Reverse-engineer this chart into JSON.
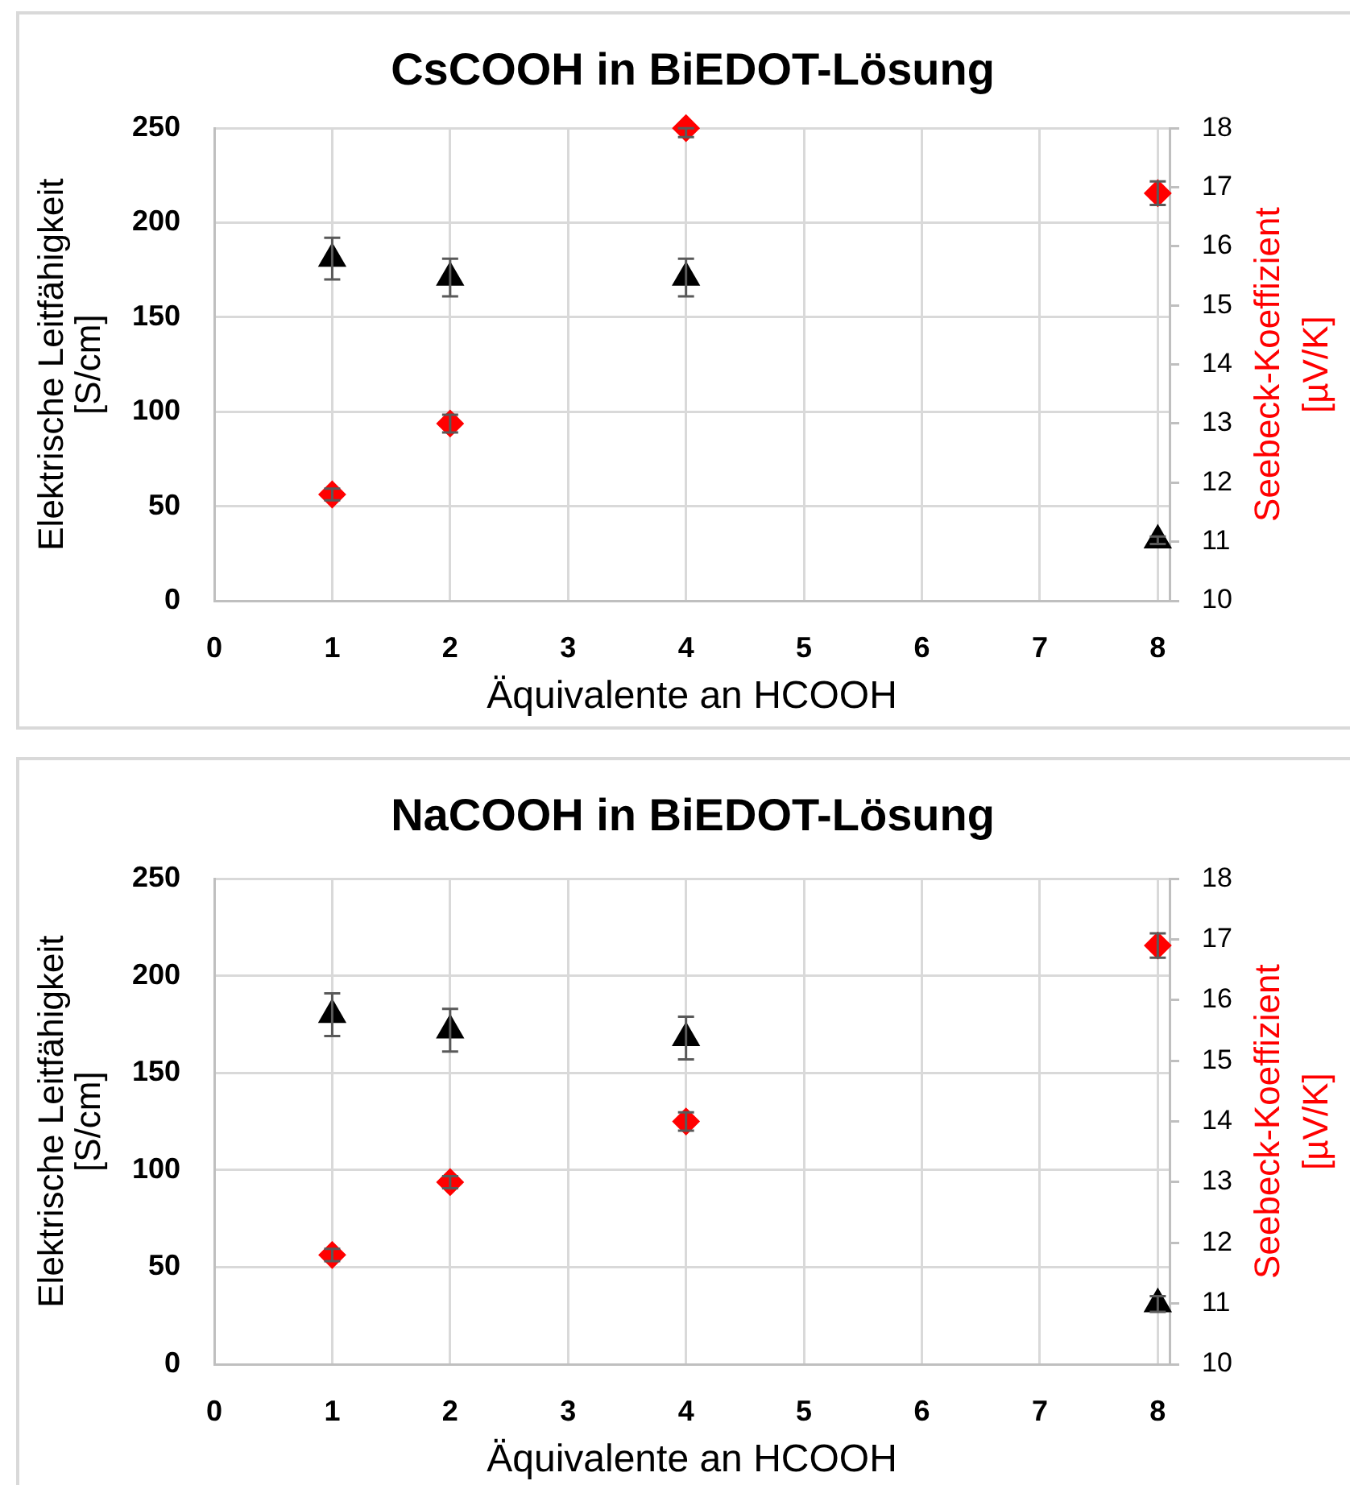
{
  "chart_data": [
    {
      "type": "scatter",
      "title": "CsCOOH in BiEDOT-Lösung",
      "xlabel": "Äquivalente an HCOOH",
      "ylabel": "Elektrische Leitfähigkeit\n[S/cm]",
      "y2label": "Seebeck-Koeffizient\n[µV/K]",
      "x": [
        1,
        2,
        4,
        8
      ],
      "xlim": [
        0,
        8.1
      ],
      "xticks": [
        0,
        1,
        2,
        3,
        4,
        5,
        6,
        7,
        8
      ],
      "ylim": [
        0,
        250
      ],
      "yticks": [
        0,
        50,
        100,
        150,
        200,
        250
      ],
      "y2lim": [
        10,
        18
      ],
      "y2ticks": [
        10,
        11,
        12,
        13,
        14,
        15,
        16,
        17,
        18
      ],
      "grid": true,
      "series": [
        {
          "color": "#000000",
          "marker": "triangle",
          "values": [
            181,
            171,
            171,
            32
          ],
          "errors": [
            11,
            10,
            10,
            2
          ]
        },
        {
          "color": "#ff0000",
          "marker": "diamond",
          "axis": "y2",
          "values": [
            11.8,
            13,
            18,
            16.9
          ],
          "errors": [
            0.1,
            0.15,
            [
              17.85,
              18
            ],
            0.2
          ]
        }
      ]
    },
    {
      "type": "scatter",
      "title": "NaCOOH in BiEDOT-Lösung",
      "xlabel": "Äquivalente an HCOOH",
      "ylabel": "Elektrische Leitfähigkeit\n[S/cm]",
      "y2label": "Seebeck-Koeffizient\n[µV/K]",
      "x": [
        1,
        2,
        4,
        8
      ],
      "xlim": [
        0,
        8.1
      ],
      "xticks": [
        0,
        1,
        2,
        3,
        4,
        5,
        6,
        7,
        8
      ],
      "ylim": [
        0,
        250
      ],
      "yticks": [
        0,
        50,
        100,
        150,
        200,
        250
      ],
      "y2lim": [
        10,
        18
      ],
      "y2ticks": [
        10,
        11,
        12,
        13,
        14,
        15,
        16,
        17,
        18
      ],
      "grid": true,
      "series": [
        {
          "color": "#000000",
          "marker": "triangle",
          "values": [
            180,
            172,
            168,
            31
          ],
          "errors": [
            11,
            11,
            11,
            4
          ]
        },
        {
          "color": "#ff0000",
          "marker": "diamond",
          "axis": "y2",
          "values": [
            11.8,
            13,
            14,
            16.9
          ],
          "errors": [
            0.1,
            0.1,
            0.15,
            0.2
          ]
        }
      ]
    }
  ]
}
